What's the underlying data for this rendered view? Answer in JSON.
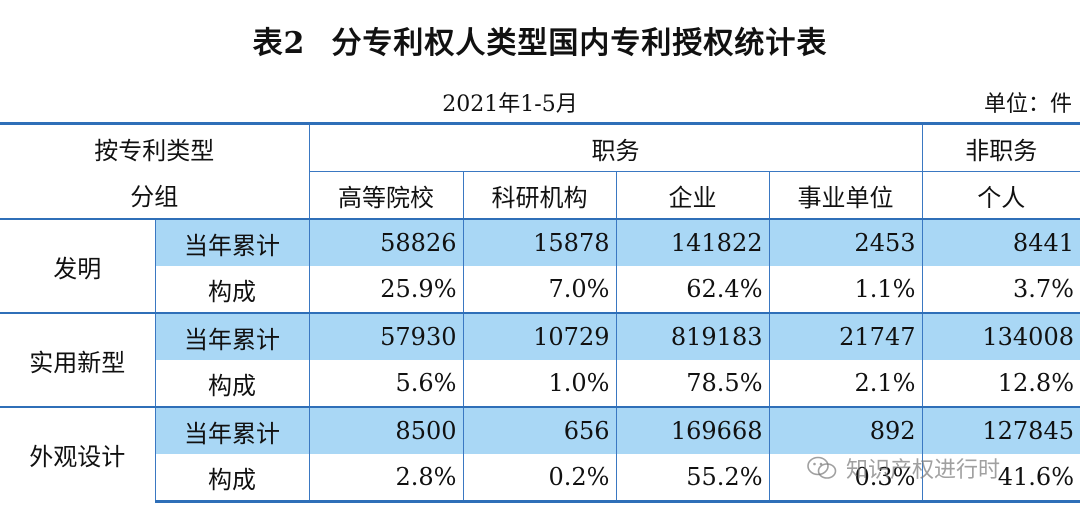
{
  "title": {
    "number": "表2",
    "text": "分专利权人类型国内专利授权统计表"
  },
  "date": "2021年1-5月",
  "unit": "单位：件",
  "header": {
    "type_label_1": "按专利类型",
    "type_label_2": "分组",
    "service": "职务",
    "non_service": "非职务",
    "columns": [
      "高等院校",
      "科研机构",
      "企业",
      "事业单位",
      "个人"
    ]
  },
  "groups": [
    {
      "name": "发明",
      "rows": [
        {
          "label": "当年累计",
          "values": [
            "58826",
            "15878",
            "141822",
            "2453",
            "8441"
          ]
        },
        {
          "label": "构成",
          "values": [
            "25.9%",
            "7.0%",
            "62.4%",
            "1.1%",
            "3.7%"
          ]
        }
      ]
    },
    {
      "name": "实用新型",
      "rows": [
        {
          "label": "当年累计",
          "values": [
            "57930",
            "10729",
            "819183",
            "21747",
            "134008"
          ]
        },
        {
          "label": "构成",
          "values": [
            "5.6%",
            "1.0%",
            "78.5%",
            "2.1%",
            "12.8%"
          ]
        }
      ]
    },
    {
      "name": "外观设计",
      "rows": [
        {
          "label": "当年累计",
          "values": [
            "8500",
            "656",
            "169668",
            "892",
            "127845"
          ]
        },
        {
          "label": "构成",
          "values": [
            "2.8%",
            "0.2%",
            "55.2%",
            "0.3%",
            "41.6%"
          ]
        }
      ]
    }
  ],
  "watermark": {
    "text": "知识产权进行时",
    "icon": "wechat-icon"
  },
  "colors": {
    "accent_blue": "#2f6fb8",
    "row_highlight": "#a9d7f5"
  }
}
